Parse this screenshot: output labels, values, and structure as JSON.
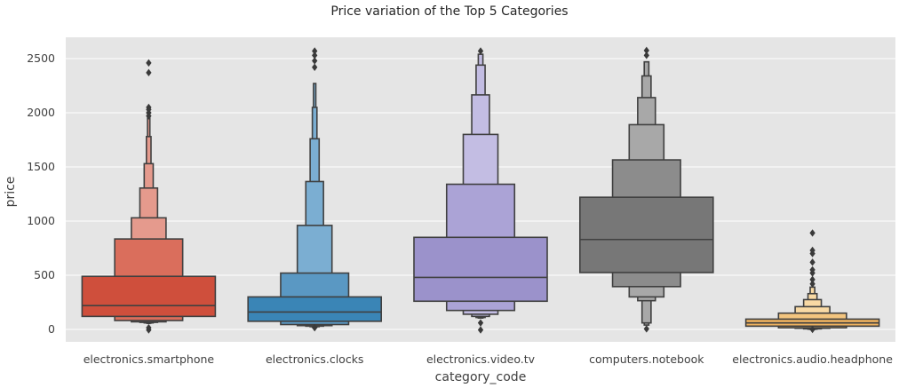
{
  "chart_data": {
    "type": "boxen",
    "title": "Price variation of the Top 5 Categories",
    "xlabel": "category_code",
    "ylabel": "price",
    "ylim": [
      -130,
      2600
    ],
    "yticks": [
      0,
      500,
      1000,
      1500,
      2000,
      2500
    ],
    "grid": true,
    "background": "#E5E5E5",
    "categories": [
      "electronics.smartphone",
      "electronics.clocks",
      "electronics.video.tv",
      "computers.notebook",
      "electronics.audio.headphone"
    ],
    "series": [
      {
        "category": "electronics.smartphone",
        "median": 220,
        "colors": [
          "#CF4F3C",
          "#DA6E5C",
          "#E59A8D"
        ],
        "boxes": [
          [
            120,
            490
          ],
          [
            82,
            835
          ],
          [
            70,
            1030
          ],
          [
            65,
            1305
          ],
          [
            60,
            1530
          ],
          [
            58,
            1780
          ],
          [
            55,
            1950
          ]
        ],
        "outliers": [
          -5,
          15,
          1970,
          2000,
          2030,
          2050,
          2370,
          2460
        ]
      },
      {
        "category": "electronics.clocks",
        "median": 160,
        "colors": [
          "#3A85B6",
          "#5A98C3",
          "#7BAED2"
        ],
        "boxes": [
          [
            75,
            300
          ],
          [
            45,
            520
          ],
          [
            35,
            960
          ],
          [
            30,
            1365
          ],
          [
            25,
            1760
          ],
          [
            22,
            2050
          ],
          [
            20,
            2270
          ]
        ],
        "outliers": [
          15,
          2420,
          2480,
          2530,
          2570
        ]
      },
      {
        "category": "electronics.video.tv",
        "median": 480,
        "colors": [
          "#9B92CB",
          "#ABA3D6",
          "#C3BDE3"
        ],
        "boxes": [
          [
            260,
            850
          ],
          [
            175,
            1340
          ],
          [
            140,
            1800
          ],
          [
            120,
            2165
          ],
          [
            110,
            2440
          ],
          [
            105,
            2540
          ]
        ],
        "outliers": [
          -5,
          60,
          2570
        ]
      },
      {
        "category": "computers.notebook",
        "median": 830,
        "colors": [
          "#777777",
          "#8C8C8C",
          "#A8A8A8"
        ],
        "boxes": [
          [
            525,
            1220
          ],
          [
            395,
            1565
          ],
          [
            300,
            1890
          ],
          [
            265,
            2140
          ],
          [
            60,
            2340
          ],
          [
            40,
            2470
          ]
        ],
        "outliers": [
          5,
          2530,
          2575
        ]
      },
      {
        "category": "electronics.audio.headphone",
        "median": 60,
        "colors": [
          "#EDB15F",
          "#F3C57F",
          "#F8D9A4"
        ],
        "boxes": [
          [
            30,
            95
          ],
          [
            15,
            150
          ],
          [
            10,
            210
          ],
          [
            5,
            275
          ],
          [
            2,
            330
          ],
          [
            0,
            390
          ]
        ],
        "outliers": [
          0,
          420,
          460,
          520,
          550,
          620,
          700,
          730,
          890
        ]
      }
    ]
  }
}
